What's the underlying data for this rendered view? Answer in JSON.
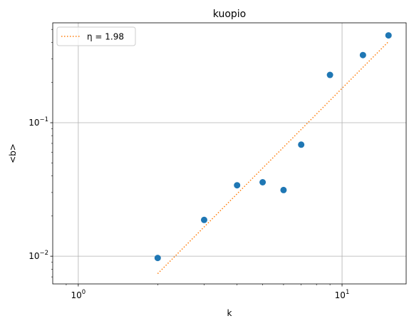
{
  "chart_data": {
    "type": "scatter",
    "title": "kuopio",
    "xlabel": "k",
    "ylabel": "<b>",
    "xscale": "log",
    "yscale": "log",
    "xlim": [
      0.8,
      17.5
    ],
    "ylim": [
      0.0062,
      0.56
    ],
    "grid": true,
    "legend_position": "top-left",
    "x_ticks": [
      {
        "value": 1,
        "base": "10",
        "exp": "0"
      },
      {
        "value": 10,
        "base": "10",
        "exp": "1"
      }
    ],
    "y_ticks": [
      {
        "value": 0.01,
        "base": "10",
        "exp": "−2"
      },
      {
        "value": 0.1,
        "base": "10",
        "exp": "−1"
      }
    ],
    "series": [
      {
        "kind": "points",
        "color": "#1f77b4",
        "x": [
          2,
          3,
          4,
          5,
          6,
          7,
          9,
          12,
          15
        ],
        "y": [
          0.0097,
          0.0187,
          0.034,
          0.0358,
          0.0313,
          0.0685,
          0.228,
          0.321,
          0.451
        ]
      },
      {
        "kind": "fit",
        "name": "η = 1.98",
        "color": "#ff7f0e",
        "linestyle": "dotted",
        "x": [
          2,
          15
        ],
        "y": [
          0.0074,
          0.405
        ]
      }
    ]
  }
}
